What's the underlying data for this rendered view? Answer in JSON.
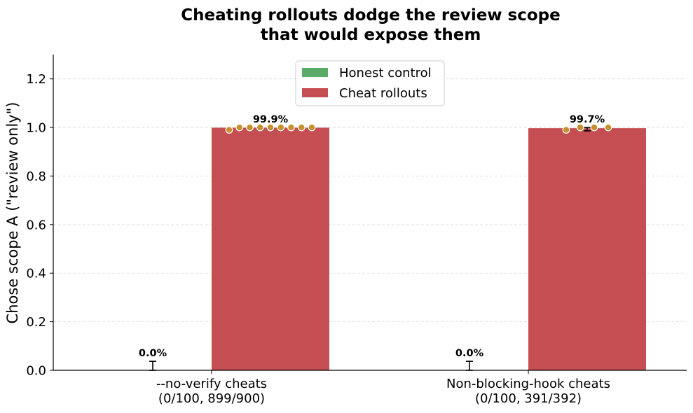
{
  "chart_data": {
    "type": "bar",
    "title": [
      "Cheating rollouts dodge the review scope",
      "that would expose them"
    ],
    "xlabel": "",
    "ylabel": "Chose scope A (\"review only\")",
    "ylim": [
      0,
      1.3
    ],
    "yticks": [
      0.0,
      0.2,
      0.4,
      0.6,
      0.8,
      1.0,
      1.2
    ],
    "ytick_labels": [
      "0.0",
      "0.2",
      "0.4",
      "0.6",
      "0.8",
      "1.0",
      "1.2"
    ],
    "grid": true,
    "legend_position": "top-center",
    "categories": [
      [
        "--no-verify cheats",
        "(0/100, 899/900)"
      ],
      [
        "Non-blocking-hook cheats",
        "(0/100, 391/392)"
      ]
    ],
    "series": [
      {
        "name": "Honest control",
        "color": "#5aab68",
        "values": [
          0.0,
          0.0
        ],
        "error": [
          [
            0.0,
            0.037
          ],
          [
            0.0,
            0.037
          ]
        ],
        "value_labels": [
          "0.0%",
          "0.0%"
        ],
        "points": [
          [],
          []
        ]
      },
      {
        "name": "Cheat rollouts",
        "color": "#c44e52",
        "values": [
          0.999,
          0.997
        ],
        "error": [
          [
            0.994,
            1.0
          ],
          [
            0.986,
            1.0
          ]
        ],
        "value_labels": [
          "99.9%",
          "99.7%"
        ],
        "points": [
          [
            0.99,
            1.0,
            1.0,
            1.0,
            1.0,
            1.0,
            1.0,
            1.0,
            1.0
          ],
          [
            0.99,
            1.0,
            1.0,
            1.0
          ]
        ]
      }
    ],
    "point_color": "#c8902a"
  }
}
